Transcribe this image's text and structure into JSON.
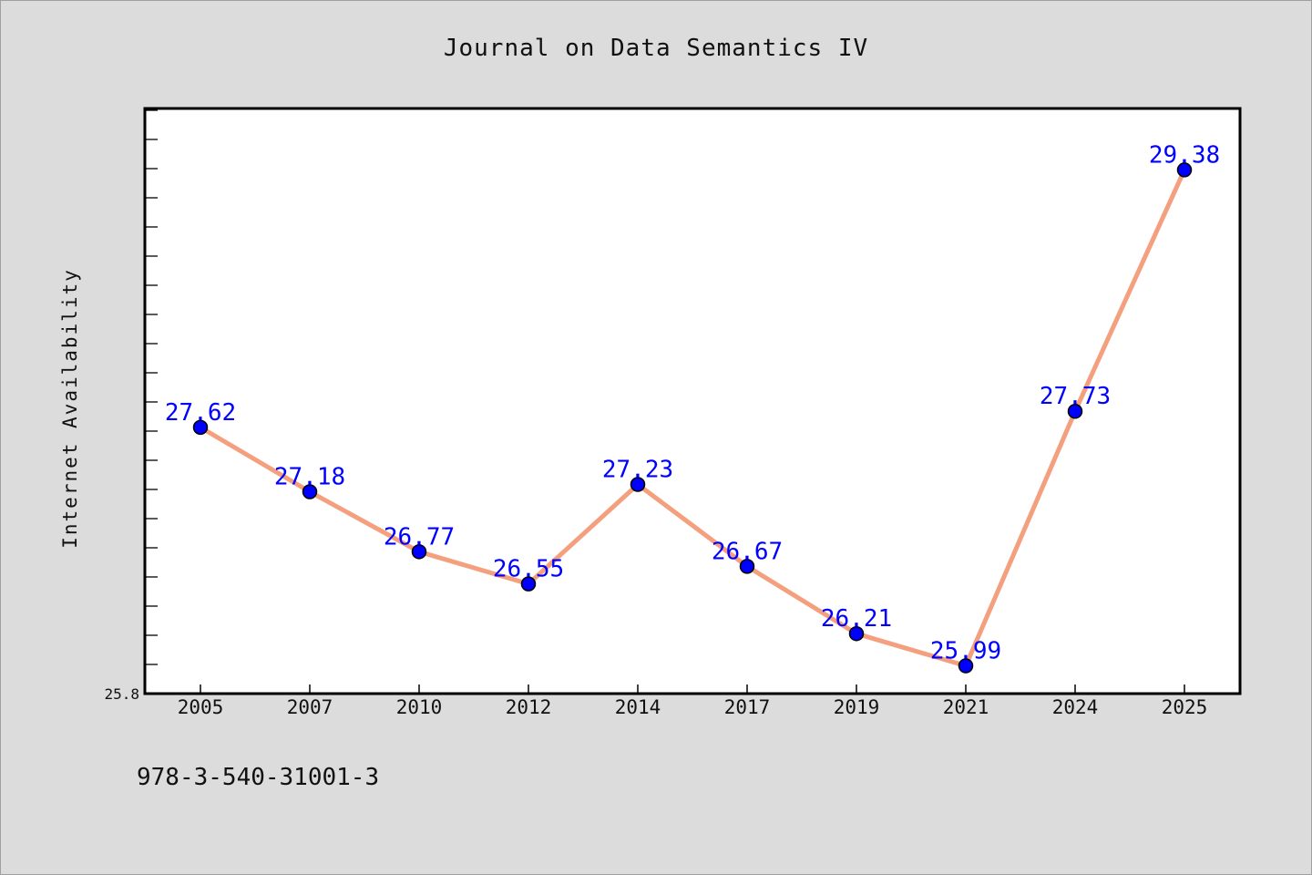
{
  "chart_data": {
    "type": "line",
    "title": "Journal on Data Semantics IV",
    "xlabel": "",
    "ylabel": "Internet Availability",
    "categories": [
      "2005",
      "2007",
      "2010",
      "2012",
      "2014",
      "2017",
      "2019",
      "2021",
      "2024",
      "2025"
    ],
    "series": [
      {
        "values": [
          27.62,
          27.18,
          26.77,
          26.55,
          27.23,
          26.67,
          26.21,
          25.99,
          27.73,
          29.38
        ]
      }
    ],
    "ylim": [
      25.8,
      29.8
    ],
    "ytick_labels": [
      "25.8"
    ],
    "grid": false,
    "legend": "none",
    "colors": {
      "line": "#f4a07f",
      "marker": "#0000ff",
      "label": "#0000ff",
      "plot_bg": "#ffffff",
      "page_bg": "#dcdcdc"
    }
  },
  "footer": {
    "isbn": "978-3-540-31001-3"
  }
}
